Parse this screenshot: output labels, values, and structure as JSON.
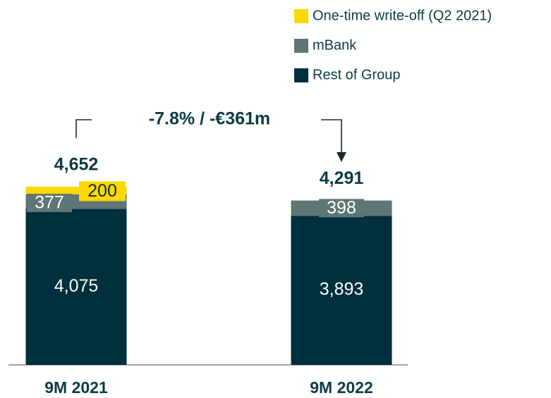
{
  "chart_data": {
    "type": "stacked_bar",
    "categories": [
      "9M 2021",
      "9M 2022"
    ],
    "series": [
      {
        "name": "Rest of Group",
        "color": "#002f3d",
        "values": [
          4075,
          3893
        ],
        "value_labels": [
          "4,075",
          "3,893"
        ]
      },
      {
        "name": "mBank",
        "color": "#5e7676",
        "values": [
          377,
          398
        ]
      },
      {
        "name": "One-time write-off (Q2 2021)",
        "color": "#ffd800",
        "values": [
          200,
          null
        ]
      }
    ],
    "totals": [
      4652,
      4291
    ],
    "total_labels": [
      "4,652",
      "4,291"
    ],
    "annotation": "-7.8% / -€361m",
    "legend": "top-right"
  }
}
